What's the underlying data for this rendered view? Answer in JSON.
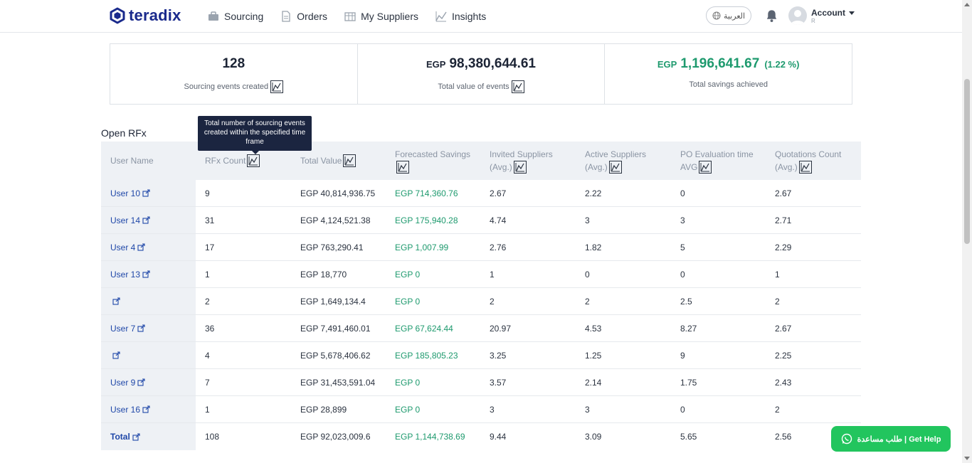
{
  "brand": {
    "name": "teradix"
  },
  "nav": [
    {
      "label": "Sourcing",
      "icon": "sourcing-icon"
    },
    {
      "label": "Orders",
      "icon": "orders-icon"
    },
    {
      "label": "My Suppliers",
      "icon": "suppliers-icon"
    },
    {
      "label": "Insights",
      "icon": "insights-icon"
    }
  ],
  "header": {
    "language": "العربية",
    "account_label": "Account",
    "account_sub": "R"
  },
  "stats": {
    "events_count": "128",
    "events_label": "Sourcing events created",
    "total_value_currency": "EGP",
    "total_value": "98,380,644.61",
    "total_value_label": "Total value of events",
    "savings_currency": "EGP",
    "savings_value": "1,196,641.67",
    "savings_pct": "(1.22 %)",
    "savings_label": "Total savings achieved"
  },
  "section_title": "Open RFx",
  "tooltip": "Total number of sourcing events created within the specified time frame",
  "table": {
    "headers": [
      "User Name",
      "RFx Count",
      "Total Value",
      "Forecasted Savings",
      "Invited Suppliers (Avg.)",
      "Active Suppliers (Avg.)",
      "PO Evaluation time AVG",
      "Quotations Count (Avg.)"
    ],
    "rows": [
      [
        "User 10",
        "9",
        "EGP 40,814,936.75",
        "EGP 714,360.76",
        "2.67",
        "2.22",
        "0",
        "2.67"
      ],
      [
        "User 14",
        "31",
        "EGP 4,124,521.38",
        "EGP 175,940.28",
        "4.74",
        "3",
        "3",
        "2.71"
      ],
      [
        "User 4",
        "17",
        "EGP 763,290.41",
        "EGP 1,007.99",
        "2.76",
        "1.82",
        "5",
        "2.29"
      ],
      [
        "User 13",
        "1",
        "EGP 18,770",
        "EGP 0",
        "1",
        "0",
        "0",
        "1"
      ],
      [
        "",
        "2",
        "EGP 1,649,134.4",
        "EGP 0",
        "2",
        "2",
        "2.5",
        "2"
      ],
      [
        "User 7",
        "36",
        "EGP 7,491,460.01",
        "EGP 67,624.44",
        "20.97",
        "4.53",
        "8.27",
        "2.67"
      ],
      [
        "",
        "4",
        "EGP 5,678,406.62",
        "EGP 185,805.23",
        "3.25",
        "1.25",
        "9",
        "2.25"
      ],
      [
        "User 9",
        "7",
        "EGP 31,453,591.04",
        "EGP 0",
        "3.57",
        "2.14",
        "1.75",
        "2.43"
      ],
      [
        "User 16",
        "1",
        "EGP 28,899",
        "EGP 0",
        "3",
        "3",
        "0",
        "2"
      ],
      [
        "Total",
        "108",
        "EGP 92,023,009.6",
        "EGP 1,144,738.69",
        "9.44",
        "3.09",
        "5.65",
        "2.56"
      ]
    ]
  },
  "help_button": "طلب مساعدة | Get Help",
  "colors": {
    "brand": "#1a2a8c",
    "green": "#1e9a6e",
    "link": "#1f47a8",
    "help": "#22c55e"
  }
}
